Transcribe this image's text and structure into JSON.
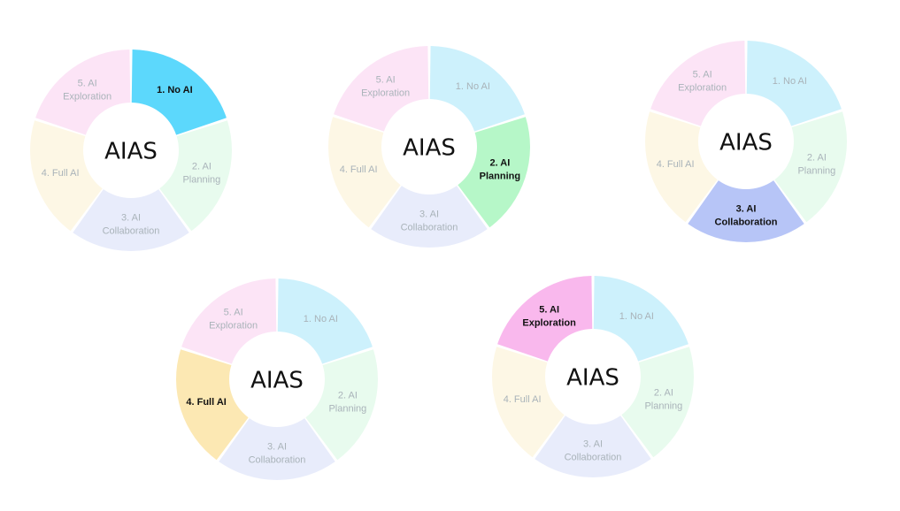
{
  "center_label": "AIAS",
  "segments": [
    {
      "lines": [
        "1. No AI"
      ],
      "strong_color": "#5cd8fc",
      "pale_color": "#cdf1fc",
      "active_text": "#111111",
      "pale_text": "#a9b3b9"
    },
    {
      "lines": [
        "2. AI",
        "Planning"
      ],
      "strong_color": "#b6f7c8",
      "pale_color": "#e8fbee",
      "active_text": "#111111",
      "pale_text": "#a9b3b9"
    },
    {
      "lines": [
        "3. AI",
        "Collaboration"
      ],
      "strong_color": "#b7c5f7",
      "pale_color": "#e8ecfb",
      "active_text": "#111111",
      "pale_text": "#a9b3b9"
    },
    {
      "lines": [
        "4. Full AI"
      ],
      "strong_color": "#fce8b3",
      "pale_color": "#fdf7e5",
      "active_text": "#111111",
      "pale_text": "#a9b3b9"
    },
    {
      "lines": [
        "5. AI",
        "Exploration"
      ],
      "strong_color": "#f9b8ed",
      "pale_color": "#fce4f6",
      "active_text": "#111111",
      "pale_text": "#a9b3b9"
    }
  ],
  "wheels": [
    {
      "active_segment": 1
    },
    {
      "active_segment": 2
    },
    {
      "active_segment": 3
    },
    {
      "active_segment": 4
    },
    {
      "active_segment": 5
    }
  ]
}
